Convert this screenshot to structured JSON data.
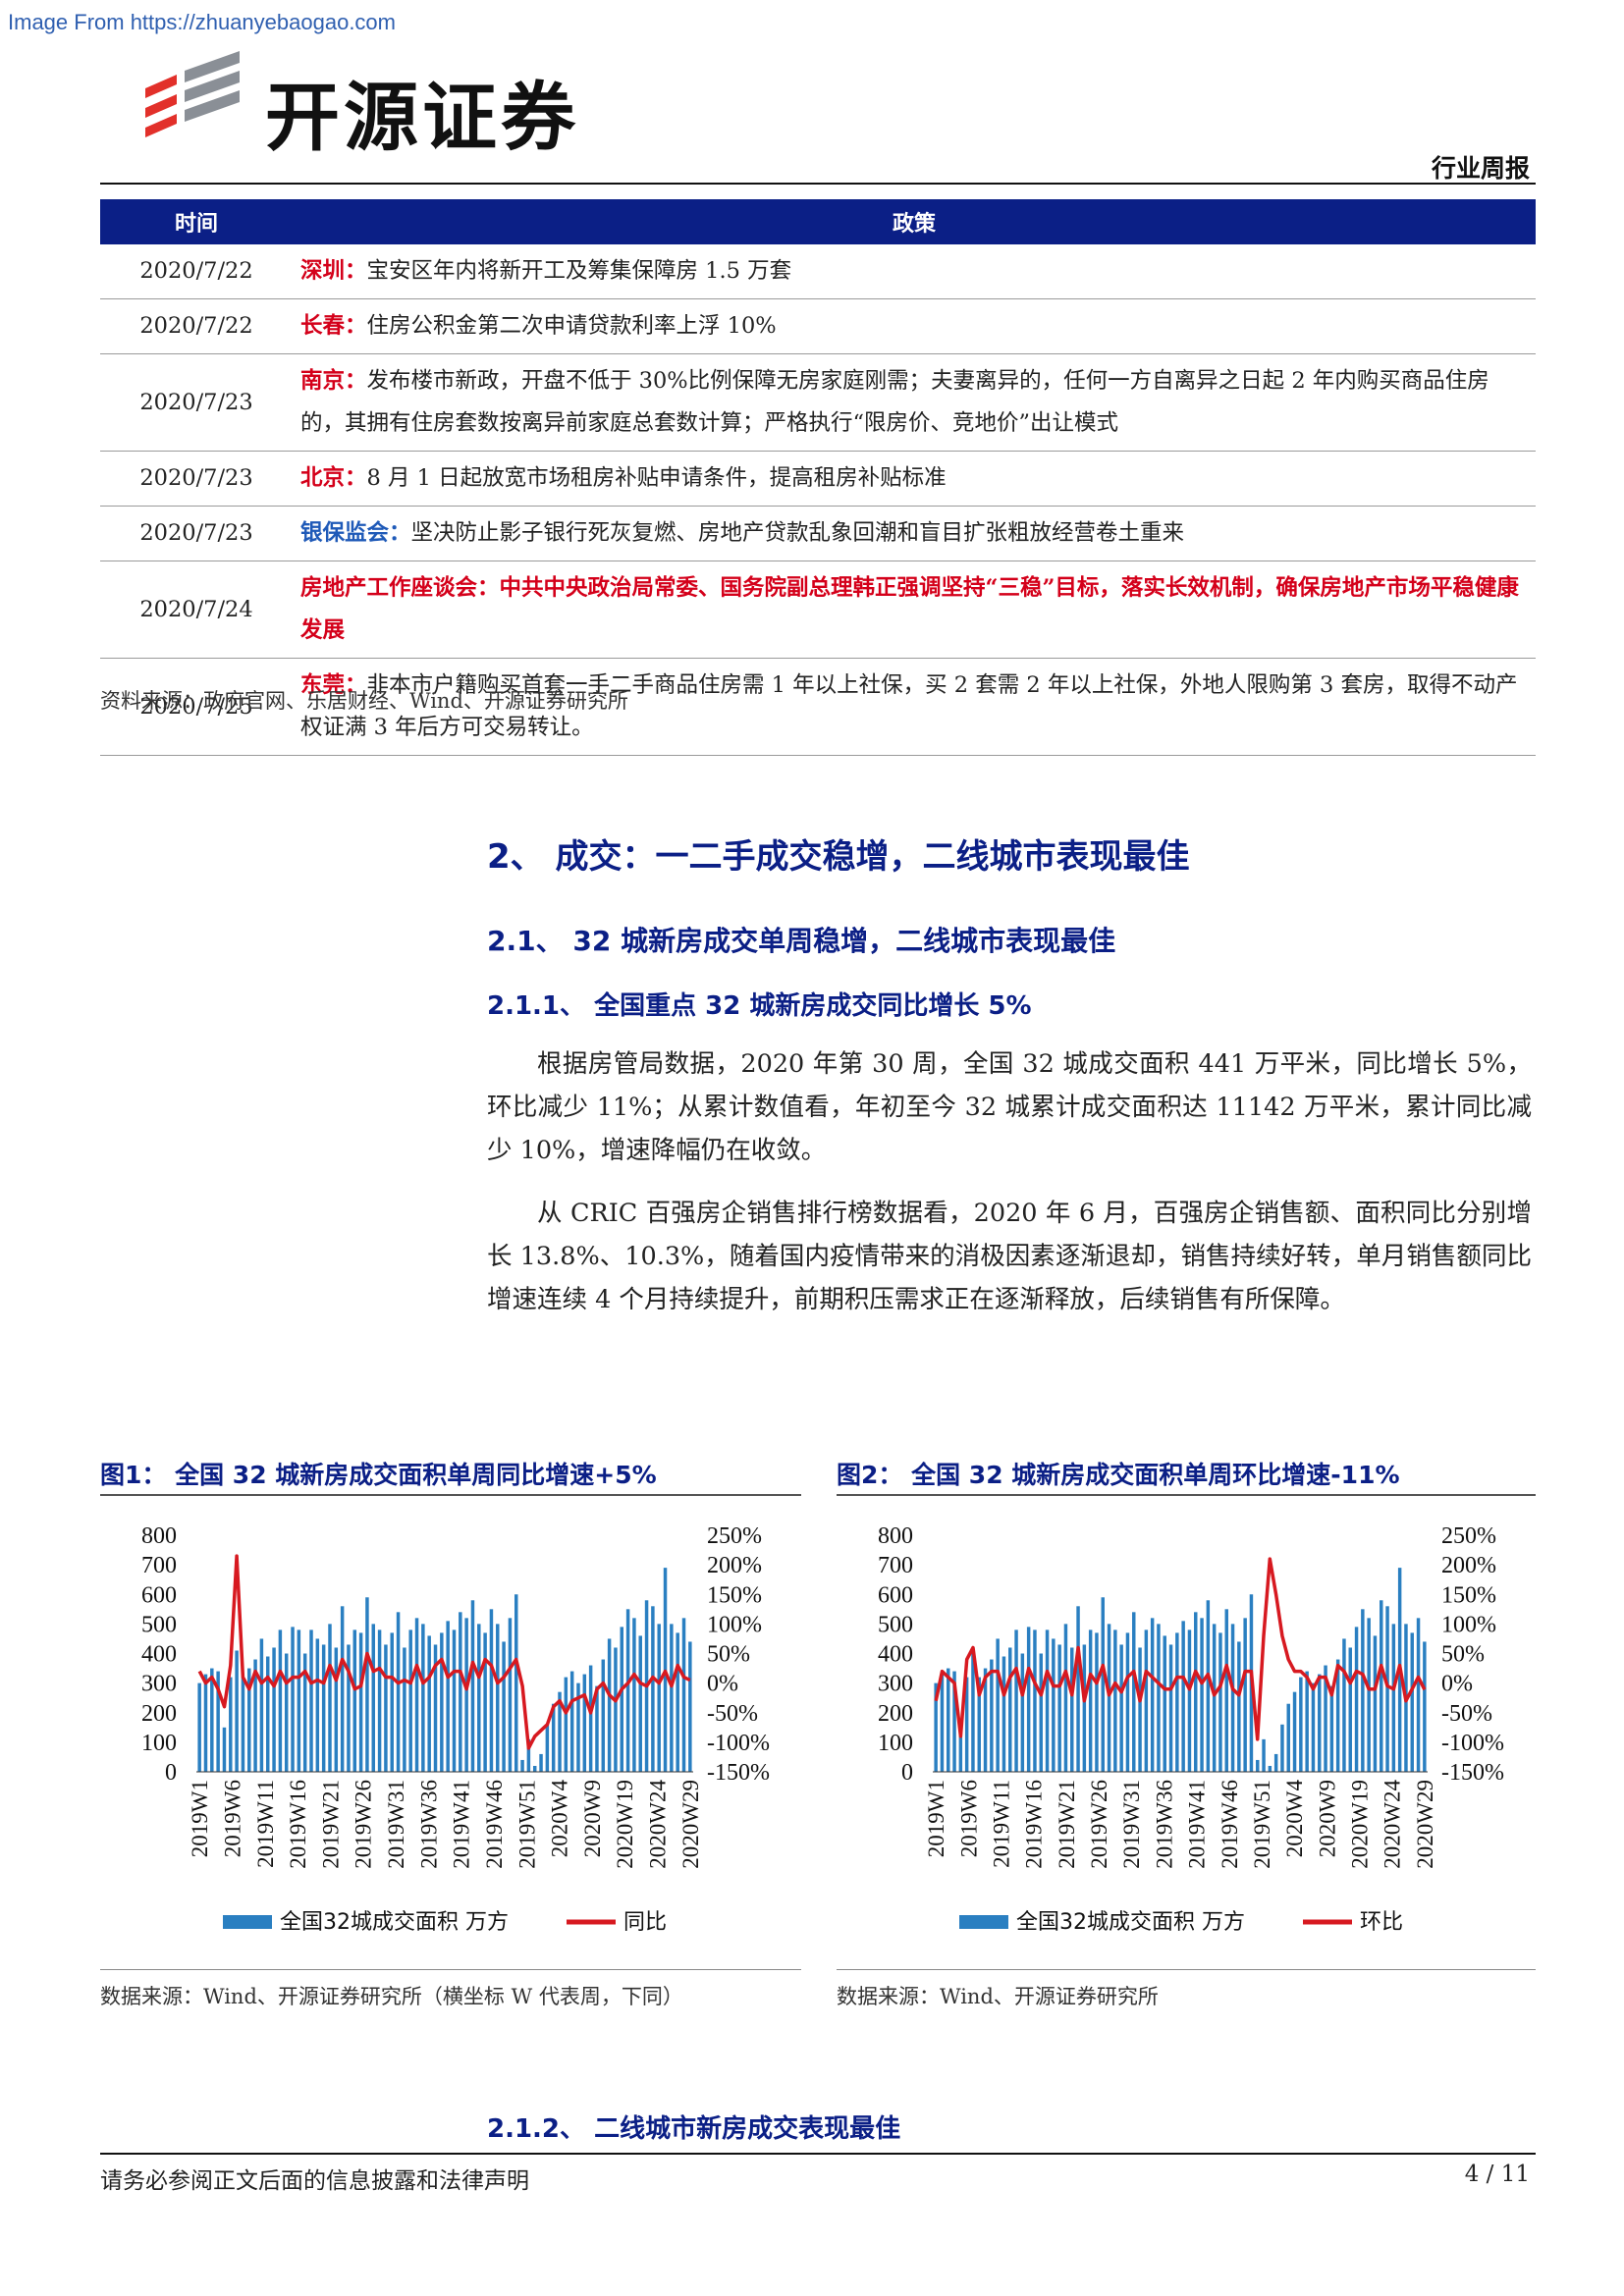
{
  "watermark": "Image From https://zhuanyebaogao.com",
  "header": {
    "brand": "开源证券",
    "report_type": "行业周报"
  },
  "policy_table": {
    "headers": {
      "date": "时间",
      "policy": "政策"
    },
    "rows": [
      {
        "date": "2020/7/22",
        "city": "深圳：",
        "text": "宝安区年内将新开工及筹集保障房 1.5 万套",
        "style": "red"
      },
      {
        "date": "2020/7/22",
        "city": "长春：",
        "text": "住房公积金第二次申请贷款利率上浮 10%",
        "style": "red"
      },
      {
        "date": "2020/7/23",
        "city": "南京：",
        "text": "发布楼市新政，开盘不低于 30%比例保障无房家庭刚需；夫妻离异的，任何一方自离异之日起 2 年内购买商品住房的，其拥有住房套数按离异前家庭总套数计算；严格执行“限房价、竞地价”出让模式",
        "style": "red"
      },
      {
        "date": "2020/7/23",
        "city": "北京：",
        "text": "8 月 1 日起放宽市场租房补贴申请条件，提高租房补贴标准",
        "style": "red"
      },
      {
        "date": "2020/7/23",
        "city": "银保监会：",
        "text": "坚决防止影子银行死灰复燃、房地产贷款乱象回潮和盲目扩张粗放经营卷土重来",
        "style": "blue"
      },
      {
        "date": "2020/7/24",
        "city": "房地产工作座谈会：",
        "text": "中共中央政治局常委、国务院副总理韩正强调坚持“三稳”目标，落实长效机制，确保房地产市场平稳健康发展",
        "style": "allred"
      },
      {
        "date": "2020/7/25",
        "city": "东莞：",
        "text": "非本市户籍购买首套一手二手商品住房需 1 年以上社保，买 2 套需 2 年以上社保，外地人限购第 3 套房，取得不动产权证满 3 年后方可交易转让。",
        "style": "red"
      }
    ],
    "source": "资料来源：政府官网、乐居财经、Wind、开源证券研究所"
  },
  "section": {
    "h2": "2、  成交：一二手成交稳增，二线城市表现最佳",
    "h3": "2.1、  32 城新房成交单周稳增，二线城市表现最佳",
    "h4": "2.1.1、  全国重点 32 城新房成交同比增长 5%",
    "p1": "根据房管局数据，2020 年第 30 周，全国 32 城成交面积 441 万平米，同比增长 5%，环比减少 11%；从累计数值看，年初至今 32 城累计成交面积达 11142 万平米，累计同比减少 10%，增速降幅仍在收敛。",
    "p2": "从 CRIC 百强房企销售排行榜数据看，2020 年 6 月，百强房企销售额、面积同比分别增长 13.8%、10.3%，随着国内疫情带来的消极因素逐渐退却，销售持续好转，单月销售额同比增速连续 4 个月持续提升，前期积压需求正在逐渐释放，后续销售有所保障。",
    "h4b": "2.1.2、  二线城市新房成交表现最佳"
  },
  "figures": [
    {
      "title": "图1：  全国 32 城新房成交面积单周同比增速+5%",
      "source": "数据来源：Wind、开源证券研究所（横坐标 W 代表周，下同）"
    },
    {
      "title": "图2：  全国 32 城新房成交面积单周环比增速-11%",
      "source": "数据来源：Wind、开源证券研究所"
    }
  ],
  "chart_data": [
    {
      "type": "bar+line",
      "colors": {
        "bar": "#2a7fc1",
        "line": "#d71920"
      },
      "y_left": {
        "ylim": [
          0,
          800
        ],
        "ticks": [
          "800",
          "700",
          "600",
          "500",
          "400",
          "300",
          "200",
          "100",
          "0"
        ]
      },
      "y_right": {
        "ylim": [
          -150,
          250
        ],
        "ticks": [
          "250%",
          "200%",
          "150%",
          "100%",
          "50%",
          "0%",
          "-50%",
          "-100%",
          "-150%"
        ]
      },
      "x_tick_labels": [
        "2019W1",
        "2019W6",
        "2019W11",
        "2019W16",
        "2019W21",
        "2019W26",
        "2019W31",
        "2019W36",
        "2019W41",
        "2019W46",
        "2019W51",
        "2020W4",
        "2020W9",
        "2020W19",
        "2020W24",
        "2020W29"
      ],
      "legend": [
        "全国32城成交面积 万方",
        "同比"
      ],
      "bars": [
        300,
        330,
        350,
        340,
        150,
        320,
        410,
        320,
        350,
        380,
        450,
        390,
        420,
        480,
        400,
        490,
        480,
        400,
        480,
        450,
        430,
        500,
        420,
        560,
        430,
        480,
        470,
        590,
        500,
        480,
        430,
        470,
        540,
        420,
        480,
        520,
        500,
        460,
        430,
        470,
        510,
        480,
        540,
        520,
        580,
        500,
        470,
        550,
        500,
        440,
        520,
        600,
        40,
        110,
        20,
        60,
        160,
        230,
        270,
        320,
        340,
        300,
        330,
        360,
        290,
        380,
        450,
        420,
        490,
        550,
        520,
        460,
        580,
        560,
        500,
        690,
        500,
        470,
        520,
        440
      ],
      "line": [
        20,
        0,
        10,
        -10,
        -40,
        30,
        215,
        10,
        -10,
        20,
        0,
        10,
        -5,
        20,
        0,
        10,
        10,
        20,
        0,
        5,
        0,
        30,
        5,
        40,
        20,
        -10,
        -5,
        50,
        20,
        25,
        10,
        10,
        0,
        5,
        0,
        30,
        0,
        10,
        30,
        40,
        10,
        20,
        20,
        -10,
        35,
        10,
        40,
        30,
        0,
        10,
        25,
        40,
        -5,
        -110,
        -90,
        -80,
        -70,
        -40,
        -30,
        -50,
        -30,
        -25,
        -20,
        -50,
        -10,
        0,
        -20,
        -30,
        -10,
        0,
        15,
        0,
        -5,
        10,
        0,
        20,
        -5,
        30,
        10,
        5
      ]
    },
    {
      "type": "bar+line",
      "colors": {
        "bar": "#2a7fc1",
        "line": "#d71920"
      },
      "y_left": {
        "ylim": [
          0,
          800
        ],
        "ticks": [
          "800",
          "700",
          "600",
          "500",
          "400",
          "300",
          "200",
          "100",
          "0"
        ]
      },
      "y_right": {
        "ylim": [
          -150,
          250
        ],
        "ticks": [
          "250%",
          "200%",
          "150%",
          "100%",
          "50%",
          "0%",
          "-50%",
          "-100%",
          "-150%"
        ]
      },
      "x_tick_labels": [
        "2019W1",
        "2019W6",
        "2019W11",
        "2019W16",
        "2019W21",
        "2019W26",
        "2019W31",
        "2019W36",
        "2019W41",
        "2019W46",
        "2019W51",
        "2020W4",
        "2020W9",
        "2020W19",
        "2020W24",
        "2020W29"
      ],
      "legend": [
        "全国32城成交面积 万方",
        "环比"
      ],
      "bars": [
        300,
        330,
        350,
        340,
        150,
        320,
        410,
        320,
        350,
        380,
        450,
        390,
        420,
        480,
        400,
        490,
        480,
        400,
        480,
        450,
        430,
        500,
        420,
        560,
        430,
        480,
        470,
        590,
        500,
        480,
        430,
        470,
        540,
        420,
        480,
        520,
        500,
        460,
        430,
        470,
        510,
        480,
        540,
        520,
        580,
        500,
        470,
        550,
        500,
        440,
        520,
        600,
        40,
        110,
        20,
        60,
        160,
        230,
        270,
        320,
        340,
        300,
        330,
        360,
        290,
        380,
        450,
        420,
        490,
        550,
        520,
        460,
        580,
        560,
        500,
        690,
        500,
        470,
        520,
        440
      ],
      "line": [
        -30,
        20,
        10,
        0,
        -90,
        40,
        60,
        -20,
        10,
        20,
        20,
        -20,
        10,
        25,
        -20,
        25,
        0,
        -20,
        20,
        -5,
        -5,
        20,
        -20,
        60,
        -30,
        15,
        0,
        30,
        -20,
        0,
        -15,
        10,
        20,
        -30,
        20,
        10,
        0,
        -10,
        -10,
        10,
        10,
        -10,
        20,
        0,
        15,
        -20,
        -5,
        30,
        -10,
        -20,
        20,
        20,
        -95,
        80,
        210,
        150,
        80,
        40,
        20,
        20,
        10,
        -10,
        10,
        10,
        -20,
        30,
        20,
        0,
        20,
        15,
        -10,
        -10,
        30,
        -5,
        -10,
        30,
        -30,
        -10,
        10,
        -11
      ]
    }
  ],
  "footer": {
    "disclaimer": "请务必参阅正文后面的信息披露和法律声明",
    "page": "4 / 11"
  }
}
